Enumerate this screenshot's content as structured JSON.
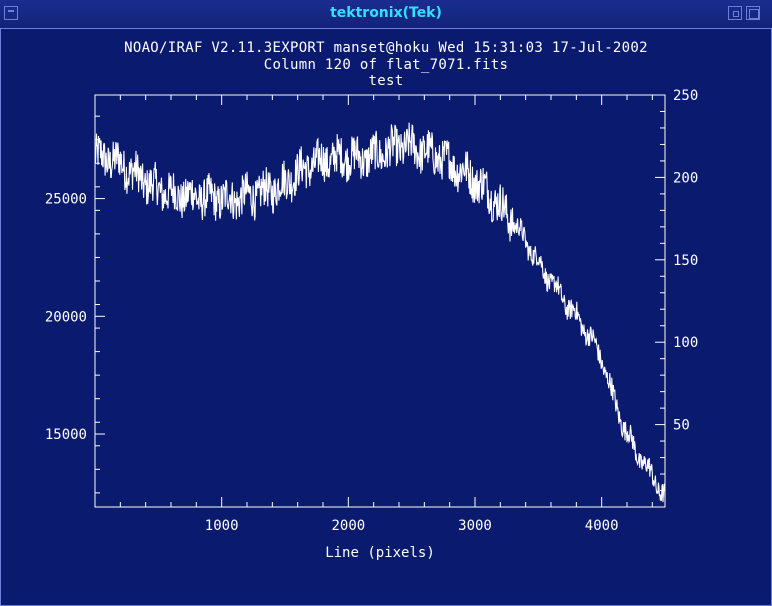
{
  "window": {
    "title": "tektronix(Tek)"
  },
  "chart_data": {
    "type": "line",
    "header_lines": [
      "NOAO/IRAF V2.11.3EXPORT manset@hoku Wed 15:31:03 17-Jul-2002",
      "Column 120 of flat_7071.fits",
      "test"
    ],
    "xlabel": "Line (pixels)",
    "xlim": [
      0,
      4500
    ],
    "ylim": [
      11900,
      29400
    ],
    "xticks": [
      1000,
      2000,
      3000,
      4000
    ],
    "yticks_left": [
      15000,
      20000,
      25000
    ],
    "yticks_right_labels": [
      "50",
      "100",
      "150",
      "200",
      "250"
    ],
    "right_axis_lim": [
      0,
      250
    ],
    "series": [
      {
        "x": [
          0,
          100,
          200,
          300,
          400,
          500,
          600,
          700,
          800,
          900,
          1000,
          1100,
          1200,
          1300,
          1400,
          1500,
          1600,
          1700,
          1800,
          1900,
          2000,
          2100,
          2200,
          2300,
          2400,
          2500,
          2600,
          2700,
          2800,
          2900,
          3000,
          3100,
          3200,
          3300,
          3400,
          3500,
          3600,
          3700,
          3800,
          3900,
          4000,
          4100,
          4200,
          4300,
          4400,
          4500
        ],
        "y": [
          26800,
          26700,
          26500,
          26100,
          25700,
          25400,
          25200,
          25100,
          25100,
          25000,
          25000,
          25000,
          25100,
          25200,
          25400,
          25700,
          26100,
          26400,
          26600,
          26700,
          26800,
          26700,
          26800,
          27000,
          27200,
          27200,
          27000,
          26800,
          26500,
          26200,
          25800,
          25300,
          24700,
          24000,
          23200,
          22300,
          21500,
          20700,
          20000,
          19200,
          18200,
          16400,
          15000,
          14000,
          13200,
          12300
        ]
      }
    ]
  }
}
